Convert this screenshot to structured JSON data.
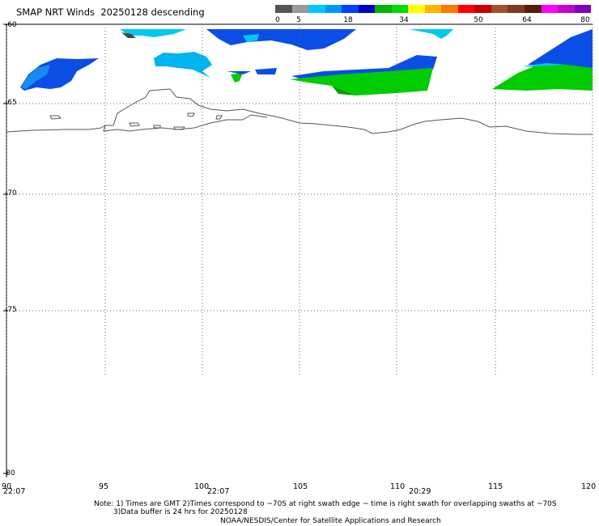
{
  "title": "SMAP NRT Winds  20250128 descending",
  "colorbar": {
    "ticks": [
      "0",
      "5",
      "18",
      "34",
      "50",
      "64",
      "80"
    ],
    "colors": [
      "#555555",
      "#9a9a9a",
      "#00c8ff",
      "#0096ff",
      "#0040ff",
      "#0000c8",
      "#00b400",
      "#00dc00",
      "#ffff00",
      "#ffb400",
      "#ff7800",
      "#ff0000",
      "#c80000",
      "#a0522d",
      "#7b3b1e",
      "#5a1a0a",
      "#ff00ff",
      "#c800c8",
      "#8000c0"
    ]
  },
  "map": {
    "lat_labels": [
      "-60",
      "-65",
      "-70",
      "-75",
      "-80"
    ],
    "lon_labels": [
      "90",
      "95",
      "100",
      "105",
      "110",
      "115",
      "120"
    ],
    "time_labels": [
      "22:07",
      "22:07",
      "20:29"
    ],
    "land_outline_color": "#555555",
    "wind_swaths": [
      {
        "color": "#0a4ee6",
        "label": "wind 5-18 kt"
      },
      {
        "color": "#00c8f0",
        "label": "wind 5-10 kt"
      },
      {
        "color": "#00cc00",
        "label": "wind 18-34 kt"
      }
    ]
  },
  "notes": {
    "line1": "Note: 1) Times are GMT 2)Times correspond to ~70S at right swath edge ~ time is right swath for overlapping swaths at ~70S",
    "line2": "3)Data buffer is 24 hrs for 20250128",
    "credit": "NOAA/NESDIS/Center for Satellite Applications and Research"
  }
}
